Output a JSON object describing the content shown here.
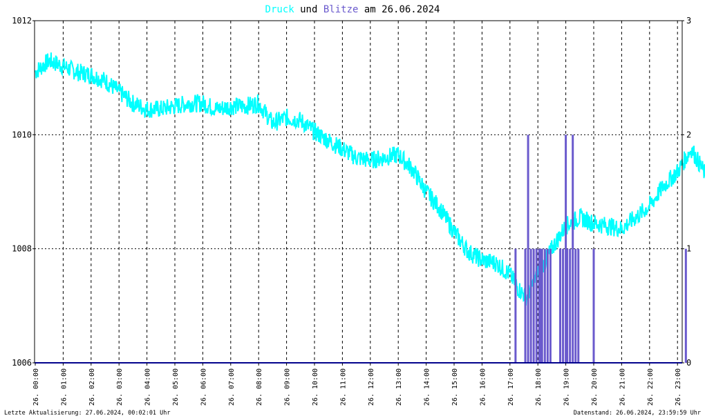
{
  "title": {
    "part1": "Druck",
    "part2": " und ",
    "part3": "Blitze",
    "part4": " am 26.06.2024",
    "color1": "#00ffff",
    "color3": "#6a5acd"
  },
  "footer": {
    "left": "Letzte Aktualisierung: 27.06.2024, 00:02:01 Uhr",
    "right": "Datenstand: 26.06.2024, 23:59:59 Uhr"
  },
  "chart_data": {
    "type": "line",
    "grid": true,
    "x_tick_labels": [
      "26. 00:00",
      "26. 01:00",
      "26. 02:00",
      "26. 03:00",
      "26. 04:00",
      "26. 05:00",
      "26. 06:00",
      "26. 07:00",
      "26. 08:00",
      "26. 09:00",
      "26. 10:00",
      "26. 11:00",
      "26. 12:00",
      "26. 13:00",
      "26. 14:00",
      "26. 15:00",
      "26. 16:00",
      "26. 17:00",
      "26. 18:00",
      "26. 19:00",
      "26. 20:00",
      "26. 21:00",
      "26. 22:00",
      "26. 23:00"
    ],
    "y_left": {
      "ticks": [
        "1006",
        "1008",
        "1010",
        "1012"
      ],
      "ylim": [
        1006,
        1012
      ]
    },
    "y_right": {
      "ticks": [
        "0",
        "1",
        "2",
        "3"
      ],
      "ylim": [
        0,
        3
      ]
    },
    "series": [
      {
        "name": "Druck",
        "color": "#00ffff",
        "axis": "left",
        "x_hours": [
          0,
          0.5,
          1,
          1.5,
          2,
          2.5,
          3,
          3.5,
          4,
          4.5,
          5,
          5.5,
          6,
          6.5,
          7,
          7.5,
          8,
          8.5,
          9,
          9.5,
          10,
          10.5,
          11,
          11.5,
          12,
          12.5,
          13,
          13.5,
          14,
          14.5,
          15,
          15.5,
          16,
          16.5,
          17,
          17.3,
          17.6,
          18,
          18.5,
          19,
          19.5,
          20,
          20.5,
          21,
          21.5,
          22,
          22.5,
          23,
          23.5,
          24
        ],
        "values": [
          1011.1,
          1011.3,
          1011.2,
          1011.1,
          1011.05,
          1010.95,
          1010.75,
          1010.55,
          1010.45,
          1010.45,
          1010.5,
          1010.55,
          1010.55,
          1010.45,
          1010.5,
          1010.5,
          1010.55,
          1010.2,
          1010.3,
          1010.25,
          1010.05,
          1009.9,
          1009.75,
          1009.6,
          1009.55,
          1009.6,
          1009.65,
          1009.4,
          1009.0,
          1008.7,
          1008.3,
          1007.95,
          1007.8,
          1007.75,
          1007.55,
          1007.3,
          1007.15,
          1007.55,
          1008.0,
          1008.4,
          1008.55,
          1008.45,
          1008.4,
          1008.35,
          1008.55,
          1008.75,
          1009.1,
          1009.35,
          1009.75,
          1009.3
        ]
      },
      {
        "name": "Blitze",
        "color": "#6a5acd",
        "axis": "right",
        "type": "bar",
        "x_hours": [
          17.2,
          17.55,
          17.65,
          17.75,
          17.85,
          17.95,
          18.05,
          18.1,
          18.15,
          18.25,
          18.35,
          18.45,
          18.8,
          18.9,
          19.0,
          19.05,
          19.15,
          19.25,
          19.35,
          19.45,
          20.0,
          23.3
        ],
        "values": [
          1,
          1,
          2,
          1,
          1,
          1,
          1,
          1,
          1,
          1,
          1,
          1,
          1,
          1,
          2,
          1,
          1,
          2,
          1,
          1,
          1,
          1
        ]
      }
    ]
  }
}
